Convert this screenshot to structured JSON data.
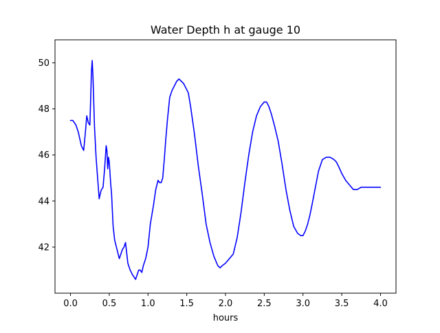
{
  "chart_data": {
    "type": "line",
    "title": "Water Depth h at gauge 10",
    "xlabel": "hours",
    "ylabel": "",
    "xlim": [
      -0.2,
      4.2
    ],
    "ylim": [
      40.0,
      51.0
    ],
    "xticks": [
      "0.0",
      "0.5",
      "1.0",
      "1.5",
      "2.0",
      "2.5",
      "3.0",
      "3.5",
      "4.0"
    ],
    "xtick_values": [
      0.0,
      0.5,
      1.0,
      1.5,
      2.0,
      2.5,
      3.0,
      3.5,
      4.0
    ],
    "yticks": [
      "42",
      "44",
      "46",
      "48",
      "50"
    ],
    "ytick_values": [
      42,
      44,
      46,
      48,
      50
    ],
    "grid": false,
    "series": [
      {
        "color": "#0000ff",
        "x": [
          0.0,
          0.03,
          0.07,
          0.1,
          0.14,
          0.17,
          0.19,
          0.21,
          0.23,
          0.25,
          0.26,
          0.27,
          0.28,
          0.29,
          0.3,
          0.31,
          0.33,
          0.35,
          0.37,
          0.39,
          0.4,
          0.42,
          0.44,
          0.46,
          0.47,
          0.48,
          0.49,
          0.5,
          0.51,
          0.52,
          0.53,
          0.55,
          0.57,
          0.6,
          0.63,
          0.65,
          0.67,
          0.69,
          0.71,
          0.72,
          0.74,
          0.77,
          0.8,
          0.84,
          0.86,
          0.88,
          0.9,
          0.92,
          0.94,
          0.97,
          1.0,
          1.03,
          1.07,
          1.1,
          1.13,
          1.15,
          1.17,
          1.19,
          1.21,
          1.23,
          1.25,
          1.28,
          1.31,
          1.34,
          1.37,
          1.4,
          1.43,
          1.46,
          1.49,
          1.52,
          1.55,
          1.6,
          1.65,
          1.7,
          1.75,
          1.8,
          1.85,
          1.9,
          1.93,
          1.96,
          2.0,
          2.05,
          2.1,
          2.15,
          2.2,
          2.25,
          2.3,
          2.35,
          2.4,
          2.45,
          2.5,
          2.53,
          2.56,
          2.59,
          2.63,
          2.68,
          2.73,
          2.78,
          2.83,
          2.88,
          2.93,
          2.97,
          3.0,
          3.03,
          3.06,
          3.09,
          3.12,
          3.16,
          3.2,
          3.25,
          3.3,
          3.35,
          3.4,
          3.43,
          3.46,
          3.5,
          3.55,
          3.6,
          3.65,
          3.7,
          3.75,
          3.8,
          3.85,
          3.9,
          3.95,
          4.0
        ],
        "y": [
          47.5,
          47.5,
          47.3,
          47.0,
          46.4,
          46.2,
          46.9,
          47.7,
          47.4,
          47.3,
          48.4,
          49.6,
          50.1,
          49.4,
          48.3,
          47.2,
          45.9,
          45.0,
          44.1,
          44.4,
          44.5,
          44.6,
          45.4,
          46.4,
          46.2,
          45.4,
          45.9,
          45.7,
          45.2,
          44.7,
          44.3,
          42.9,
          42.3,
          41.9,
          41.5,
          41.7,
          41.9,
          42.0,
          42.2,
          41.9,
          41.3,
          41.0,
          40.8,
          40.6,
          40.8,
          41.0,
          41.0,
          40.9,
          41.2,
          41.5,
          42.0,
          43.0,
          43.8,
          44.5,
          44.9,
          44.8,
          44.8,
          45.0,
          45.8,
          46.7,
          47.5,
          48.5,
          48.8,
          49.0,
          49.2,
          49.3,
          49.2,
          49.1,
          48.9,
          48.7,
          48.1,
          46.9,
          45.5,
          44.3,
          43.0,
          42.2,
          41.6,
          41.2,
          41.1,
          41.2,
          41.3,
          41.5,
          41.7,
          42.4,
          43.5,
          44.8,
          46.0,
          47.0,
          47.7,
          48.1,
          48.3,
          48.3,
          48.1,
          47.8,
          47.3,
          46.6,
          45.6,
          44.5,
          43.6,
          42.9,
          42.6,
          42.5,
          42.5,
          42.7,
          43.0,
          43.4,
          43.9,
          44.6,
          45.3,
          45.8,
          45.9,
          45.9,
          45.8,
          45.7,
          45.5,
          45.2,
          44.9,
          44.7,
          44.5,
          44.5,
          44.6,
          44.6,
          44.6,
          44.6,
          44.6,
          44.6
        ]
      }
    ]
  }
}
